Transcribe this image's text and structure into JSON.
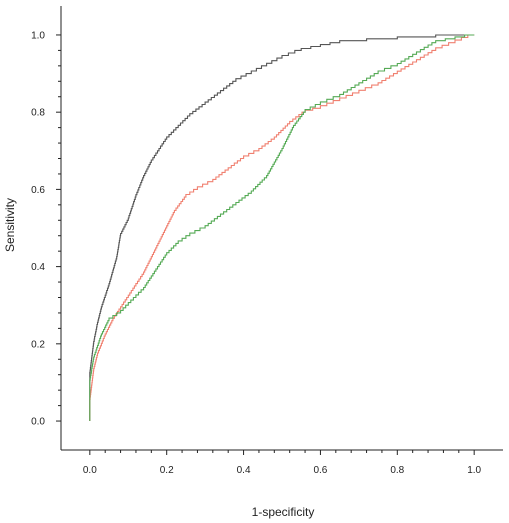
{
  "chart_data": {
    "type": "line",
    "title": "",
    "xlabel": "1-specificity",
    "ylabel": "Sensitivity",
    "xlim": [
      -0.075,
      1.075
    ],
    "ylim": [
      -0.075,
      1.075
    ],
    "x_ticks": [
      0.0,
      0.2,
      0.4,
      0.6,
      0.8,
      1.0
    ],
    "y_ticks": [
      0.0,
      0.2,
      0.4,
      0.6,
      0.8,
      1.0
    ],
    "x_tick_labels": [
      "0.0",
      "0.2",
      "0.4",
      "0.6",
      "0.8",
      "1.0"
    ],
    "y_tick_labels": [
      "0.0",
      "0.2",
      "0.4",
      "0.6",
      "0.8",
      "1.0"
    ],
    "grid": false,
    "legend": "none",
    "series": [
      {
        "color": "#555555",
        "points": [
          [
            0.0,
            0.0
          ],
          [
            0.0,
            0.12
          ],
          [
            0.01,
            0.2
          ],
          [
            0.02,
            0.25
          ],
          [
            0.03,
            0.29
          ],
          [
            0.05,
            0.35
          ],
          [
            0.07,
            0.42
          ],
          [
            0.08,
            0.48
          ],
          [
            0.1,
            0.52
          ],
          [
            0.12,
            0.58
          ],
          [
            0.14,
            0.63
          ],
          [
            0.16,
            0.67
          ],
          [
            0.18,
            0.7
          ],
          [
            0.2,
            0.73
          ],
          [
            0.23,
            0.76
          ],
          [
            0.26,
            0.79
          ],
          [
            0.3,
            0.82
          ],
          [
            0.34,
            0.85
          ],
          [
            0.38,
            0.88
          ],
          [
            0.42,
            0.9
          ],
          [
            0.46,
            0.92
          ],
          [
            0.5,
            0.94
          ],
          [
            0.55,
            0.96
          ],
          [
            0.6,
            0.97
          ],
          [
            0.65,
            0.98
          ],
          [
            0.72,
            0.985
          ],
          [
            0.8,
            0.99
          ],
          [
            0.9,
            0.995
          ],
          [
            1.0,
            1.0
          ]
        ]
      },
      {
        "color": "#f08070",
        "points": [
          [
            0.0,
            0.0
          ],
          [
            0.0,
            0.05
          ],
          [
            0.01,
            0.13
          ],
          [
            0.02,
            0.17
          ],
          [
            0.04,
            0.22
          ],
          [
            0.06,
            0.26
          ],
          [
            0.08,
            0.29
          ],
          [
            0.1,
            0.32
          ],
          [
            0.12,
            0.35
          ],
          [
            0.14,
            0.38
          ],
          [
            0.16,
            0.42
          ],
          [
            0.18,
            0.46
          ],
          [
            0.2,
            0.5
          ],
          [
            0.22,
            0.54
          ],
          [
            0.25,
            0.58
          ],
          [
            0.28,
            0.6
          ],
          [
            0.32,
            0.62
          ],
          [
            0.36,
            0.65
          ],
          [
            0.4,
            0.68
          ],
          [
            0.44,
            0.7
          ],
          [
            0.48,
            0.73
          ],
          [
            0.52,
            0.77
          ],
          [
            0.56,
            0.8
          ],
          [
            0.6,
            0.81
          ],
          [
            0.65,
            0.83
          ],
          [
            0.7,
            0.85
          ],
          [
            0.75,
            0.87
          ],
          [
            0.8,
            0.9
          ],
          [
            0.85,
            0.93
          ],
          [
            0.9,
            0.96
          ],
          [
            0.95,
            0.98
          ],
          [
            1.0,
            1.0
          ]
        ]
      },
      {
        "color": "#55aa55",
        "points": [
          [
            0.0,
            0.0
          ],
          [
            0.0,
            0.1
          ],
          [
            0.01,
            0.16
          ],
          [
            0.03,
            0.22
          ],
          [
            0.05,
            0.26
          ],
          [
            0.08,
            0.28
          ],
          [
            0.1,
            0.3
          ],
          [
            0.12,
            0.32
          ],
          [
            0.14,
            0.34
          ],
          [
            0.16,
            0.37
          ],
          [
            0.18,
            0.4
          ],
          [
            0.2,
            0.43
          ],
          [
            0.23,
            0.46
          ],
          [
            0.26,
            0.48
          ],
          [
            0.3,
            0.5
          ],
          [
            0.34,
            0.53
          ],
          [
            0.38,
            0.56
          ],
          [
            0.42,
            0.59
          ],
          [
            0.46,
            0.63
          ],
          [
            0.5,
            0.7
          ],
          [
            0.53,
            0.76
          ],
          [
            0.56,
            0.8
          ],
          [
            0.6,
            0.82
          ],
          [
            0.65,
            0.84
          ],
          [
            0.7,
            0.87
          ],
          [
            0.75,
            0.9
          ],
          [
            0.8,
            0.92
          ],
          [
            0.85,
            0.95
          ],
          [
            0.9,
            0.98
          ],
          [
            0.95,
            0.99
          ],
          [
            1.0,
            1.0
          ]
        ]
      }
    ]
  }
}
